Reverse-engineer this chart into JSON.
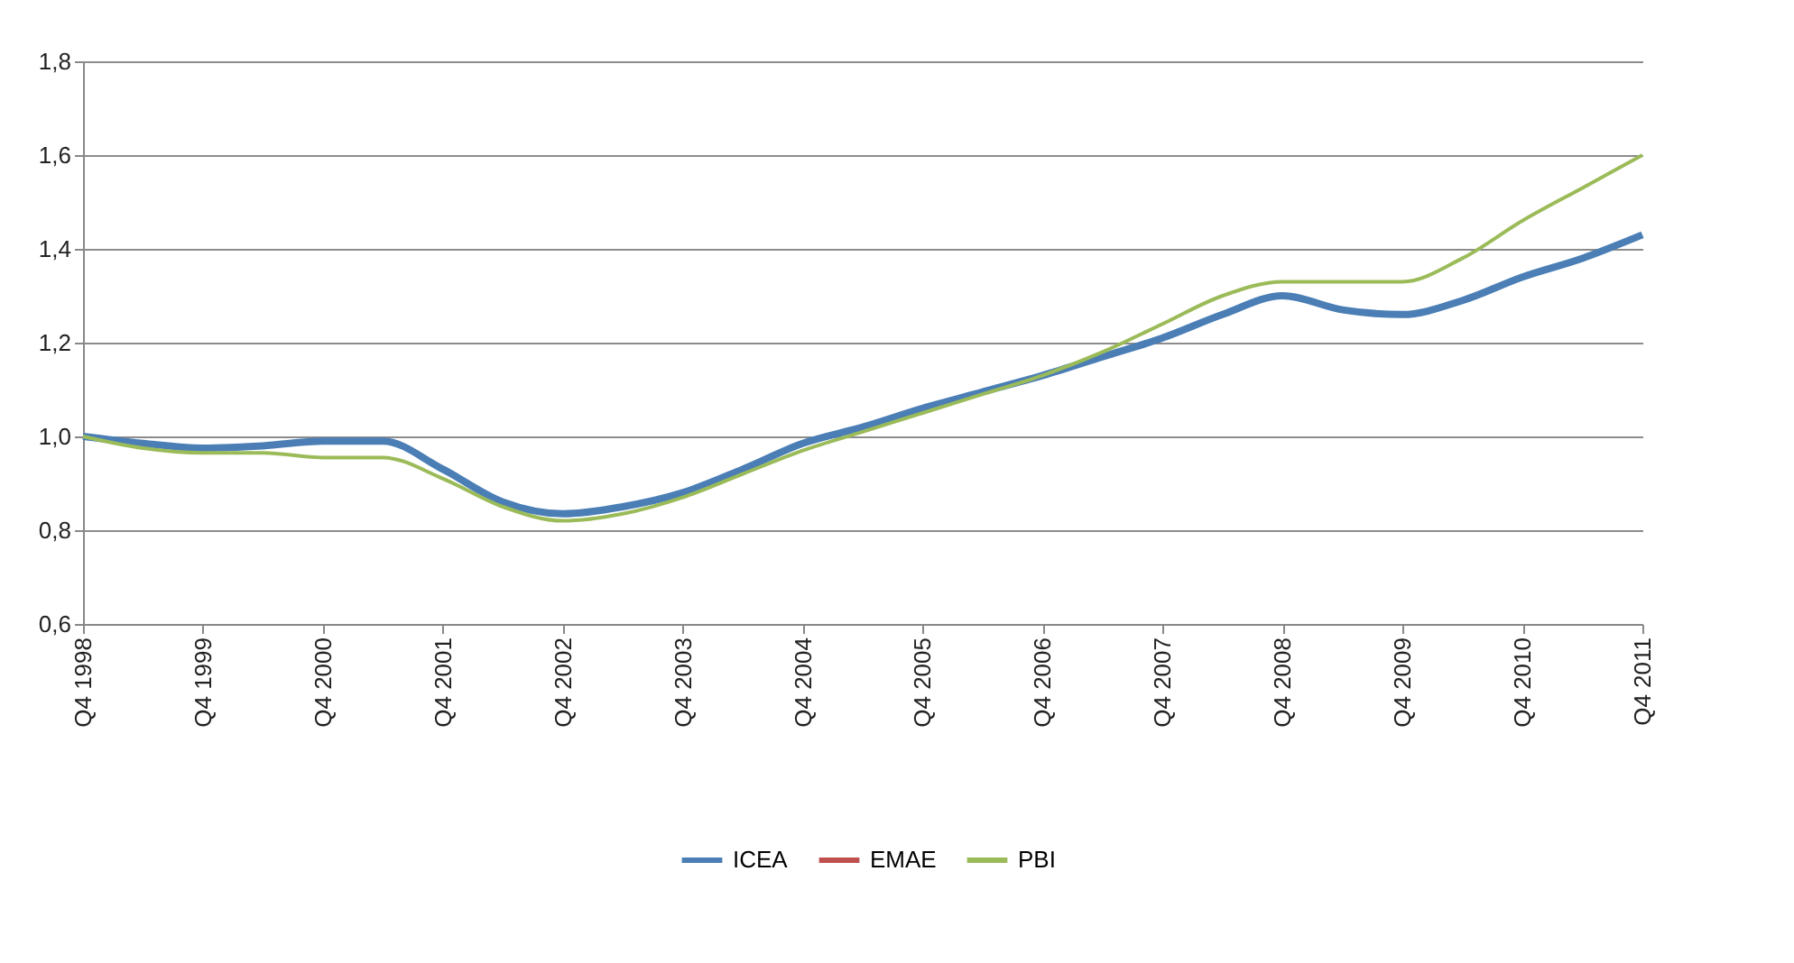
{
  "chart_data": {
    "type": "line",
    "categories": [
      "Q4 1998",
      null,
      "Q4 1999",
      null,
      "Q4 2000",
      null,
      "Q4 2001",
      null,
      "Q4 2002",
      null,
      "Q4 2003",
      null,
      "Q4 2004",
      null,
      "Q4 2005",
      null,
      "Q4 2006",
      null,
      "Q4 2007",
      null,
      "Q4 2008",
      null,
      "Q4 2009",
      null,
      "Q4 2010",
      null,
      "Q4 2011"
    ],
    "series": [
      {
        "name": "ICEA",
        "color": "#4a7eb5",
        "values": [
          1.0,
          0.985,
          0.975,
          0.98,
          0.99,
          0.99,
          0.93,
          0.86,
          0.835,
          0.85,
          0.88,
          0.93,
          0.985,
          1.02,
          1.06,
          1.095,
          1.13,
          1.17,
          1.21,
          1.26,
          1.3,
          1.27,
          1.26,
          1.29,
          1.34,
          1.38,
          1.43
        ]
      },
      {
        "name": "EMAE",
        "color": "#c0504d",
        "values": [
          null,
          null,
          null,
          null,
          null,
          null,
          null,
          null,
          null,
          null,
          null,
          null,
          null,
          null,
          null,
          null,
          null,
          null,
          null,
          null,
          null,
          null,
          null,
          null,
          null,
          null,
          null
        ]
      },
      {
        "name": "PBI",
        "color": "#9bbb59",
        "values": [
          1.0,
          0.975,
          0.965,
          0.965,
          0.955,
          0.955,
          0.91,
          0.85,
          0.82,
          0.835,
          0.87,
          0.92,
          0.97,
          1.01,
          1.05,
          1.09,
          1.13,
          1.18,
          1.24,
          1.3,
          1.33,
          1.33,
          1.33,
          1.38,
          1.46,
          1.53,
          1.6
        ]
      }
    ],
    "ylim": [
      0.6,
      1.8
    ],
    "yticks": [
      {
        "value": 0.6,
        "label": "0,6"
      },
      {
        "value": 0.8,
        "label": "0,8"
      },
      {
        "value": 1.0,
        "label": "1,0"
      },
      {
        "value": 1.2,
        "label": "1,2"
      },
      {
        "value": 1.4,
        "label": "1,4"
      },
      {
        "value": 1.6,
        "label": "1,6"
      },
      {
        "value": 1.8,
        "label": "1,8"
      }
    ],
    "grid": "y",
    "legend": "bottom",
    "marker": "none",
    "line_style": "solid"
  }
}
